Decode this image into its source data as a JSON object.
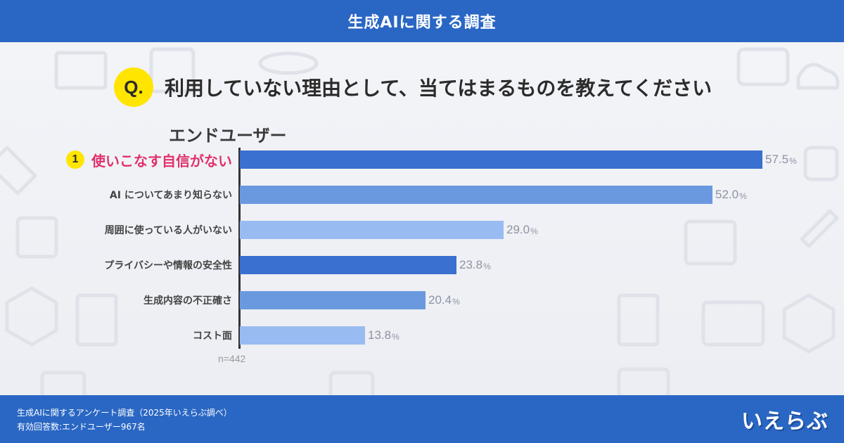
{
  "header": {
    "title": "生成AIに関する調査"
  },
  "question": {
    "badge": "Q.",
    "text": "利用していない理由として、当てはまるものを教えてください"
  },
  "segment_label": "エンドユーザー",
  "chart_data": {
    "type": "bar",
    "orientation": "horizontal",
    "title": "",
    "categories": [
      "使いこなす自信がない",
      "AI についてあまり知らない",
      "周囲に使っている人がいない",
      "プライバシーや情報の安全性",
      "生成内容の不正確さ",
      "コスト面"
    ],
    "values": [
      57.5,
      52.0,
      29.0,
      23.8,
      20.4,
      13.8
    ],
    "value_labels": [
      "57.5",
      "52.0",
      "29.0",
      "23.8",
      "20.4",
      "13.8"
    ],
    "unit": "%",
    "top_rank": "1",
    "bar_colors": [
      "#3a70cf",
      "#6a99e0",
      "#98bbf1",
      "#3a70cf",
      "#6a99e0",
      "#98bbf1"
    ],
    "xlim": [
      0,
      57.5
    ],
    "grid": false,
    "n_note": "n=442"
  },
  "footer": {
    "line1": "生成AIに関するアンケート調査（2025年いえらぶ調べ）",
    "line2": "有効回答数:エンドユーザー967名",
    "logo": "いえらぶ"
  },
  "colors": {
    "brand_blue": "#2a67c4",
    "accent_yellow": "#ffe500",
    "highlight_pink": "#e0306a"
  }
}
